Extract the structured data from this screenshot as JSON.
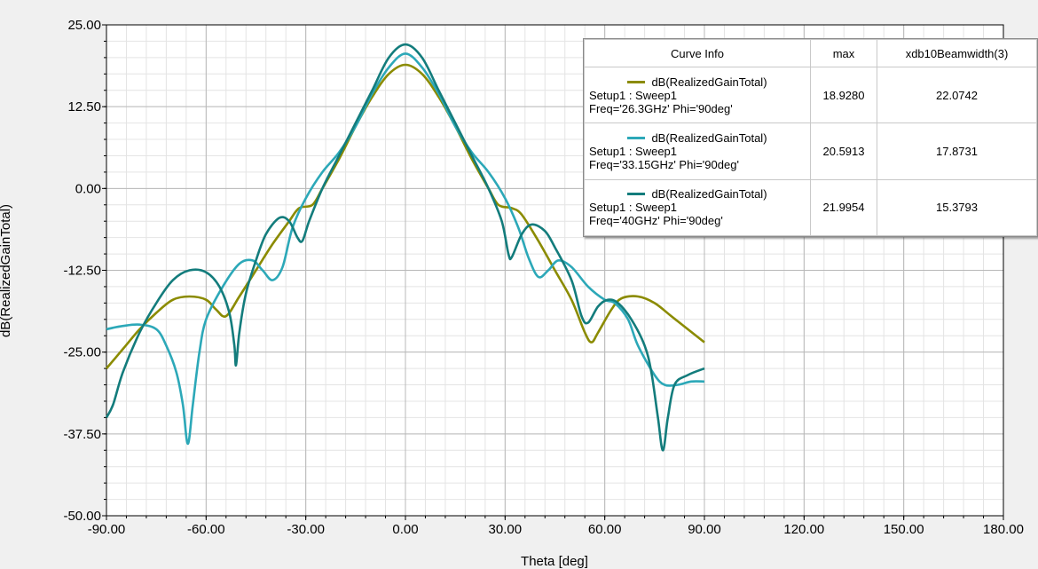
{
  "chart_data": {
    "type": "line",
    "xlabel": "Theta [deg]",
    "ylabel": "dB(RealizedGainTotal)",
    "xlim": [
      -90,
      180
    ],
    "ylim": [
      -50,
      25
    ],
    "x_ticks": [
      "-90.00",
      "-60.00",
      "-30.00",
      "0.00",
      "30.00",
      "60.00",
      "90.00",
      "120.00",
      "150.00",
      "180.00"
    ],
    "y_ticks": [
      "25.00",
      "12.50",
      "0.00",
      "-12.50",
      "-25.00",
      "-37.50",
      "-50.00"
    ],
    "grid": true,
    "legend_placement": "top-right",
    "legend_headers": [
      "Curve Info",
      "max",
      "xdb10Beamwidth(3)"
    ],
    "series": [
      {
        "name": "dB(RealizedGainTotal)",
        "setup": "Setup1 : Sweep1",
        "freq": "Freq='26.3GHz' Phi='90deg'",
        "max": "18.9280",
        "beamwidth": "22.0742",
        "color": "#8b8b00",
        "points": [
          [
            -90,
            -27.5
          ],
          [
            -85,
            -24.5
          ],
          [
            -80,
            -21.5
          ],
          [
            -75,
            -19
          ],
          [
            -70,
            -17
          ],
          [
            -65,
            -16.5
          ],
          [
            -60,
            -17
          ],
          [
            -57,
            -18.5
          ],
          [
            -54,
            -19.5
          ],
          [
            -50,
            -16.5
          ],
          [
            -45,
            -12.5
          ],
          [
            -40,
            -8.5
          ],
          [
            -35,
            -5
          ],
          [
            -32,
            -3
          ],
          [
            -28,
            -2.5
          ],
          [
            -25,
            0
          ],
          [
            -20,
            4.5
          ],
          [
            -15,
            9.5
          ],
          [
            -10,
            14
          ],
          [
            -5,
            17.5
          ],
          [
            0,
            18.9
          ],
          [
            5,
            17.5
          ],
          [
            10,
            14
          ],
          [
            15,
            9.5
          ],
          [
            20,
            4.5
          ],
          [
            25,
            0
          ],
          [
            28,
            -2.5
          ],
          [
            32,
            -3
          ],
          [
            35,
            -4
          ],
          [
            40,
            -8
          ],
          [
            45,
            -12.5
          ],
          [
            50,
            -17
          ],
          [
            54,
            -22
          ],
          [
            56,
            -23.5
          ],
          [
            58,
            -22
          ],
          [
            62,
            -18.5
          ],
          [
            65,
            -16.8
          ],
          [
            70,
            -16.5
          ],
          [
            75,
            -17.5
          ],
          [
            80,
            -19.5
          ],
          [
            85,
            -21.5
          ],
          [
            90,
            -23.5
          ]
        ]
      },
      {
        "name": "dB(RealizedGainTotal)",
        "setup": "Setup1 : Sweep1",
        "freq": "Freq='33.15GHz' Phi='90deg'",
        "max": "20.5913",
        "beamwidth": "17.8731",
        "color": "#2ca8b8",
        "points": [
          [
            -90,
            -21.5
          ],
          [
            -85,
            -21
          ],
          [
            -80,
            -20.8
          ],
          [
            -75,
            -21.5
          ],
          [
            -72,
            -24
          ],
          [
            -69,
            -28
          ],
          [
            -67,
            -33
          ],
          [
            -65.5,
            -39
          ],
          [
            -64,
            -33
          ],
          [
            -62,
            -25
          ],
          [
            -60,
            -20
          ],
          [
            -55,
            -15
          ],
          [
            -50,
            -11.5
          ],
          [
            -46,
            -11
          ],
          [
            -43,
            -12.5
          ],
          [
            -40,
            -14
          ],
          [
            -37,
            -12
          ],
          [
            -34,
            -6
          ],
          [
            -30,
            -1.5
          ],
          [
            -25,
            2.5
          ],
          [
            -20,
            5.5
          ],
          [
            -15,
            9.5
          ],
          [
            -10,
            14.5
          ],
          [
            -5,
            18.5
          ],
          [
            0,
            20.6
          ],
          [
            5,
            18.5
          ],
          [
            10,
            14.5
          ],
          [
            15,
            9.5
          ],
          [
            20,
            5.5
          ],
          [
            25,
            2.5
          ],
          [
            30,
            -1.5
          ],
          [
            34,
            -6
          ],
          [
            37,
            -10.5
          ],
          [
            40,
            -13.5
          ],
          [
            43,
            -12.5
          ],
          [
            46,
            -11
          ],
          [
            50,
            -12
          ],
          [
            55,
            -15
          ],
          [
            60,
            -17
          ],
          [
            63,
            -17.5
          ],
          [
            67,
            -20
          ],
          [
            70,
            -24
          ],
          [
            75,
            -28.5
          ],
          [
            78,
            -30
          ],
          [
            82,
            -30
          ],
          [
            86,
            -29.5
          ],
          [
            90,
            -29.5
          ]
        ]
      },
      {
        "name": "dB(RealizedGainTotal)",
        "setup": "Setup1 : Sweep1",
        "freq": "Freq='40GHz' Phi='90deg'",
        "max": "21.9954",
        "beamwidth": "15.3793",
        "color": "#137c7c",
        "points": [
          [
            -90,
            -35
          ],
          [
            -88,
            -33
          ],
          [
            -85,
            -28
          ],
          [
            -80,
            -22
          ],
          [
            -75,
            -17.5
          ],
          [
            -70,
            -14
          ],
          [
            -65,
            -12.5
          ],
          [
            -60,
            -12.8
          ],
          [
            -56,
            -15
          ],
          [
            -53,
            -19
          ],
          [
            -51.5,
            -24
          ],
          [
            -51,
            -27
          ],
          [
            -50,
            -22
          ],
          [
            -48,
            -16
          ],
          [
            -45,
            -11
          ],
          [
            -42,
            -7
          ],
          [
            -38,
            -4.5
          ],
          [
            -35,
            -5
          ],
          [
            -32.5,
            -7.5
          ],
          [
            -31,
            -8
          ],
          [
            -29,
            -5
          ],
          [
            -25,
            0
          ],
          [
            -20,
            5
          ],
          [
            -15,
            10
          ],
          [
            -10,
            15
          ],
          [
            -5,
            20
          ],
          [
            0,
            22
          ],
          [
            5,
            20
          ],
          [
            10,
            15
          ],
          [
            15,
            10
          ],
          [
            20,
            5
          ],
          [
            25,
            0
          ],
          [
            29,
            -5
          ],
          [
            31,
            -10
          ],
          [
            32,
            -10.5
          ],
          [
            35,
            -7
          ],
          [
            38,
            -5.5
          ],
          [
            42,
            -6.5
          ],
          [
            45,
            -9
          ],
          [
            50,
            -14
          ],
          [
            53,
            -19.5
          ],
          [
            55,
            -20.5
          ],
          [
            58,
            -18
          ],
          [
            61,
            -17
          ],
          [
            64,
            -17.5
          ],
          [
            68,
            -20
          ],
          [
            72,
            -24
          ],
          [
            74,
            -28
          ],
          [
            76,
            -35
          ],
          [
            77.5,
            -40
          ],
          [
            79,
            -35
          ],
          [
            81,
            -30
          ],
          [
            85,
            -28.5
          ],
          [
            90,
            -27.5
          ]
        ]
      }
    ]
  }
}
